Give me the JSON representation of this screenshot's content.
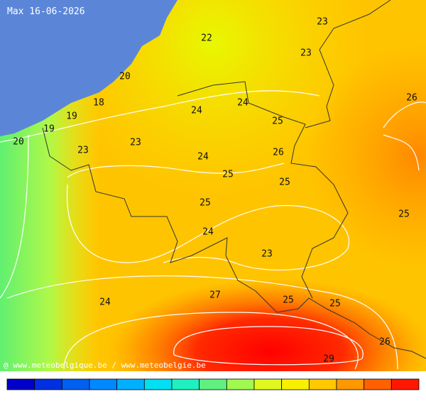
{
  "header": {
    "title": "Max 16-06-2026"
  },
  "map": {
    "labels": [
      23,
      22,
      23,
      20,
      26,
      18,
      24,
      24,
      19,
      25,
      19,
      20,
      23,
      23,
      26,
      24,
      25,
      25,
      25,
      25,
      24,
      23,
      27,
      25,
      24,
      25,
      26,
      29
    ]
  },
  "footer": {
    "credit": "@ www.meteobelgique.be / www.meteobelgie.be"
  },
  "legend": {
    "colors": [
      "#0000c8",
      "#0030e0",
      "#0060f0",
      "#0088ff",
      "#00b0ff",
      "#00e0f0",
      "#20f0c0",
      "#60f080",
      "#a0f850",
      "#e0f820",
      "#f8f000",
      "#ffc800",
      "#ff9800",
      "#ff6000",
      "#ff1800"
    ]
  }
}
